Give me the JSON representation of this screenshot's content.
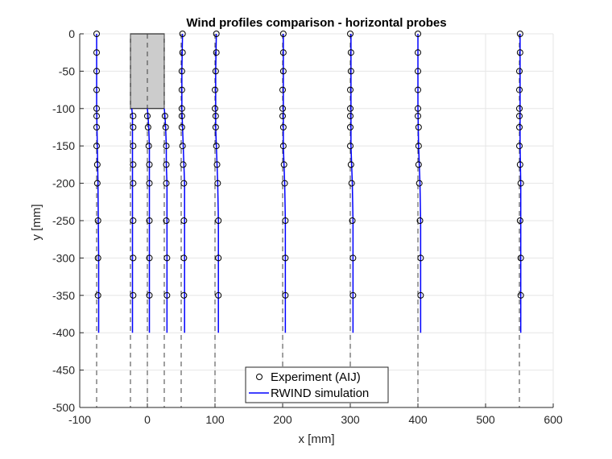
{
  "chart_data": {
    "type": "line",
    "title": "Wind profiles comparison - horizontal probes",
    "xlabel": "x [mm]",
    "ylabel": "y [mm]",
    "xlim": [
      -100,
      600
    ],
    "ylim": [
      -500,
      0
    ],
    "xticks": [
      -100,
      0,
      100,
      200,
      300,
      400,
      500,
      600
    ],
    "yticks": [
      0,
      -50,
      -100,
      -150,
      -200,
      -250,
      -300,
      -350,
      -400,
      -450,
      -500
    ],
    "grid": true,
    "legend_location": "bottom-center",
    "legend": [
      "Experiment (AIJ)",
      "RWIND simulation"
    ],
    "colors": {
      "experiment": "#000000",
      "simulation": "#0000ff",
      "building": "#cccccc",
      "probe_line": "#404040"
    },
    "building": {
      "x": [
        -25,
        25
      ],
      "y": [
        -100,
        0
      ]
    },
    "probe_lines": [
      -75,
      -25,
      0,
      25,
      50,
      100,
      200,
      300,
      400,
      550
    ],
    "series": [
      {
        "name": "Experiment (AIJ)",
        "kind": "marker",
        "profiles": [
          {
            "probe_x": -75,
            "points": [
              [
                -75,
                0
              ],
              [
                -75,
                -25
              ],
              [
                -75,
                -50
              ],
              [
                -75,
                -75
              ],
              [
                -75,
                -100
              ],
              [
                -75,
                -110
              ],
              [
                -75,
                -125
              ],
              [
                -75,
                -150
              ],
              [
                -74,
                -175
              ],
              [
                -74,
                -200
              ],
              [
                -73,
                -250
              ],
              [
                -73,
                -300
              ],
              [
                -73,
                -350
              ]
            ]
          },
          {
            "probe_x": -25,
            "points": [
              [
                -21,
                -110
              ],
              [
                -21,
                -125
              ],
              [
                -21,
                -150
              ],
              [
                -21,
                -175
              ],
              [
                -21,
                -200
              ],
              [
                -21,
                -250
              ],
              [
                -21,
                -300
              ],
              [
                -21,
                -350
              ]
            ]
          },
          {
            "probe_x": 0,
            "points": [
              [
                0,
                -110
              ],
              [
                1,
                -125
              ],
              [
                2,
                -150
              ],
              [
                3,
                -175
              ],
              [
                3,
                -200
              ],
              [
                3,
                -250
              ],
              [
                3,
                -300
              ],
              [
                3,
                -350
              ]
            ]
          },
          {
            "probe_x": 25,
            "points": [
              [
                26,
                -110
              ],
              [
                27,
                -125
              ],
              [
                28,
                -150
              ],
              [
                28,
                -175
              ],
              [
                28,
                -200
              ],
              [
                28,
                -250
              ],
              [
                29,
                -300
              ],
              [
                29,
                -350
              ]
            ]
          },
          {
            "probe_x": 50,
            "points": [
              [
                52,
                0
              ],
              [
                52,
                -25
              ],
              [
                51,
                -50
              ],
              [
                51,
                -75
              ],
              [
                51,
                -100
              ],
              [
                51,
                -110
              ],
              [
                51,
                -125
              ],
              [
                52,
                -150
              ],
              [
                53,
                -175
              ],
              [
                54,
                -200
              ],
              [
                54,
                -250
              ],
              [
                54,
                -300
              ],
              [
                54,
                -350
              ]
            ]
          },
          {
            "probe_x": 100,
            "points": [
              [
                102,
                0
              ],
              [
                102,
                -25
              ],
              [
                101,
                -50
              ],
              [
                100,
                -75
              ],
              [
                100,
                -100
              ],
              [
                101,
                -110
              ],
              [
                101,
                -125
              ],
              [
                102,
                -150
              ],
              [
                103,
                -175
              ],
              [
                104,
                -200
              ],
              [
                105,
                -250
              ],
              [
                105,
                -300
              ],
              [
                105,
                -350
              ]
            ]
          },
          {
            "probe_x": 200,
            "points": [
              [
                201,
                0
              ],
              [
                201,
                -25
              ],
              [
                201,
                -50
              ],
              [
                200,
                -75
              ],
              [
                200,
                -100
              ],
              [
                200,
                -110
              ],
              [
                201,
                -125
              ],
              [
                201,
                -150
              ],
              [
                202,
                -175
              ],
              [
                203,
                -200
              ],
              [
                204,
                -250
              ],
              [
                204,
                -300
              ],
              [
                204,
                -350
              ]
            ]
          },
          {
            "probe_x": 300,
            "points": [
              [
                300,
                0
              ],
              [
                301,
                -25
              ],
              [
                301,
                -50
              ],
              [
                300,
                -75
              ],
              [
                300,
                -100
              ],
              [
                300,
                -110
              ],
              [
                300,
                -125
              ],
              [
                300,
                -150
              ],
              [
                301,
                -175
              ],
              [
                302,
                -200
              ],
              [
                303,
                -250
              ],
              [
                304,
                -300
              ],
              [
                304,
                -350
              ]
            ]
          },
          {
            "probe_x": 400,
            "points": [
              [
                400,
                0
              ],
              [
                400,
                -25
              ],
              [
                400,
                -50
              ],
              [
                400,
                -75
              ],
              [
                400,
                -100
              ],
              [
                400,
                -110
              ],
              [
                401,
                -125
              ],
              [
                401,
                -150
              ],
              [
                401,
                -175
              ],
              [
                402,
                -200
              ],
              [
                403,
                -250
              ],
              [
                404,
                -300
              ],
              [
                404,
                -350
              ]
            ]
          },
          {
            "probe_x": 550,
            "points": [
              [
                551,
                0
              ],
              [
                551,
                -25
              ],
              [
                550,
                -50
              ],
              [
                550,
                -75
              ],
              [
                550,
                -100
              ],
              [
                550,
                -110
              ],
              [
                550,
                -125
              ],
              [
                550,
                -150
              ],
              [
                551,
                -175
              ],
              [
                552,
                -200
              ],
              [
                551,
                -250
              ],
              [
                552,
                -300
              ],
              [
                552,
                -350
              ]
            ]
          }
        ]
      },
      {
        "name": "RWIND simulation",
        "kind": "line",
        "profiles": [
          {
            "probe_x": -75,
            "points": [
              [
                -75,
                0
              ],
              [
                -75,
                -50
              ],
              [
                -75,
                -100
              ],
              [
                -74,
                -150
              ],
              [
                -73,
                -200
              ],
              [
                -72,
                -300
              ],
              [
                -72,
                -400
              ]
            ]
          },
          {
            "probe_x": -25,
            "points": [
              [
                -23,
                -100
              ],
              [
                -22,
                -110
              ],
              [
                -22,
                -150
              ],
              [
                -22,
                -200
              ],
              [
                -22,
                -300
              ],
              [
                -22,
                -400
              ]
            ]
          },
          {
            "probe_x": 0,
            "points": [
              [
                0,
                -100
              ],
              [
                1,
                -110
              ],
              [
                2,
                -125
              ],
              [
                3,
                -150
              ],
              [
                3,
                -200
              ],
              [
                3,
                -300
              ],
              [
                3,
                -400
              ]
            ]
          },
          {
            "probe_x": 25,
            "points": [
              [
                25,
                -100
              ],
              [
                26,
                -110
              ],
              [
                27,
                -125
              ],
              [
                28,
                -150
              ],
              [
                28,
                -175
              ],
              [
                29,
                -200
              ],
              [
                29,
                -300
              ],
              [
                29,
                -400
              ]
            ]
          },
          {
            "probe_x": 50,
            "points": [
              [
                52,
                0
              ],
              [
                51,
                -50
              ],
              [
                51,
                -100
              ],
              [
                52,
                -125
              ],
              [
                53,
                -150
              ],
              [
                54,
                -175
              ],
              [
                55,
                -200
              ],
              [
                55,
                -300
              ],
              [
                55,
                -400
              ]
            ]
          },
          {
            "probe_x": 100,
            "points": [
              [
                102,
                0
              ],
              [
                101,
                -50
              ],
              [
                101,
                -100
              ],
              [
                101,
                -125
              ],
              [
                102,
                -150
              ],
              [
                103,
                -175
              ],
              [
                104,
                -200
              ],
              [
                105,
                -250
              ],
              [
                105,
                -400
              ]
            ]
          },
          {
            "probe_x": 200,
            "points": [
              [
                201,
                0
              ],
              [
                201,
                -50
              ],
              [
                201,
                -100
              ],
              [
                201,
                -150
              ],
              [
                202,
                -175
              ],
              [
                203,
                -200
              ],
              [
                204,
                -250
              ],
              [
                204,
                -400
              ]
            ]
          },
          {
            "probe_x": 300,
            "points": [
              [
                301,
                0
              ],
              [
                301,
                -50
              ],
              [
                301,
                -100
              ],
              [
                301,
                -150
              ],
              [
                302,
                -175
              ],
              [
                303,
                -200
              ],
              [
                304,
                -250
              ],
              [
                304,
                -400
              ]
            ]
          },
          {
            "probe_x": 400,
            "points": [
              [
                400,
                0
              ],
              [
                400,
                -50
              ],
              [
                400,
                -100
              ],
              [
                401,
                -150
              ],
              [
                402,
                -175
              ],
              [
                403,
                -200
              ],
              [
                404,
                -250
              ],
              [
                404,
                -400
              ]
            ]
          },
          {
            "probe_x": 550,
            "points": [
              [
                551,
                0
              ],
              [
                551,
                -50
              ],
              [
                551,
                -100
              ],
              [
                551,
                -150
              ],
              [
                552,
                -200
              ],
              [
                552,
                -300
              ],
              [
                552,
                -400
              ]
            ]
          }
        ]
      }
    ]
  }
}
